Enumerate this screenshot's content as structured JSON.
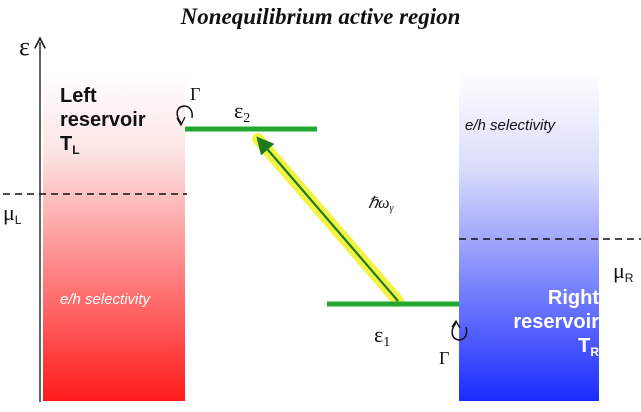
{
  "title": "Nonequilibrium active region",
  "energy_axis_symbol": "ε",
  "left_reservoir": {
    "name_line1": "Left",
    "name_line2": "reservoir",
    "temperature_symbol": "T",
    "temperature_subscript": "L",
    "selectivity": "e/h selectivity",
    "chemical_potential_symbol": "μ",
    "chemical_potential_subscript": "L",
    "gradient_color": "#ff1a1a"
  },
  "right_reservoir": {
    "name_line1": "Right",
    "name_line2": "reservoir",
    "temperature_symbol": "T",
    "temperature_subscript": "R",
    "selectivity": "e/h selectivity",
    "chemical_potential_symbol": "μ",
    "chemical_potential_subscript": "R",
    "gradient_color": "#1a2cff"
  },
  "levels": {
    "upper_symbol": "ε",
    "upper_subscript": "2",
    "lower_symbol": "ε",
    "lower_subscript": "1",
    "color": "#22a82e"
  },
  "coupling_symbol": "Γ",
  "photon": {
    "symbol": "ℏω",
    "subscript": "γ",
    "arrow_color": "#1f7a1f",
    "glow_color": "#f2f230"
  }
}
